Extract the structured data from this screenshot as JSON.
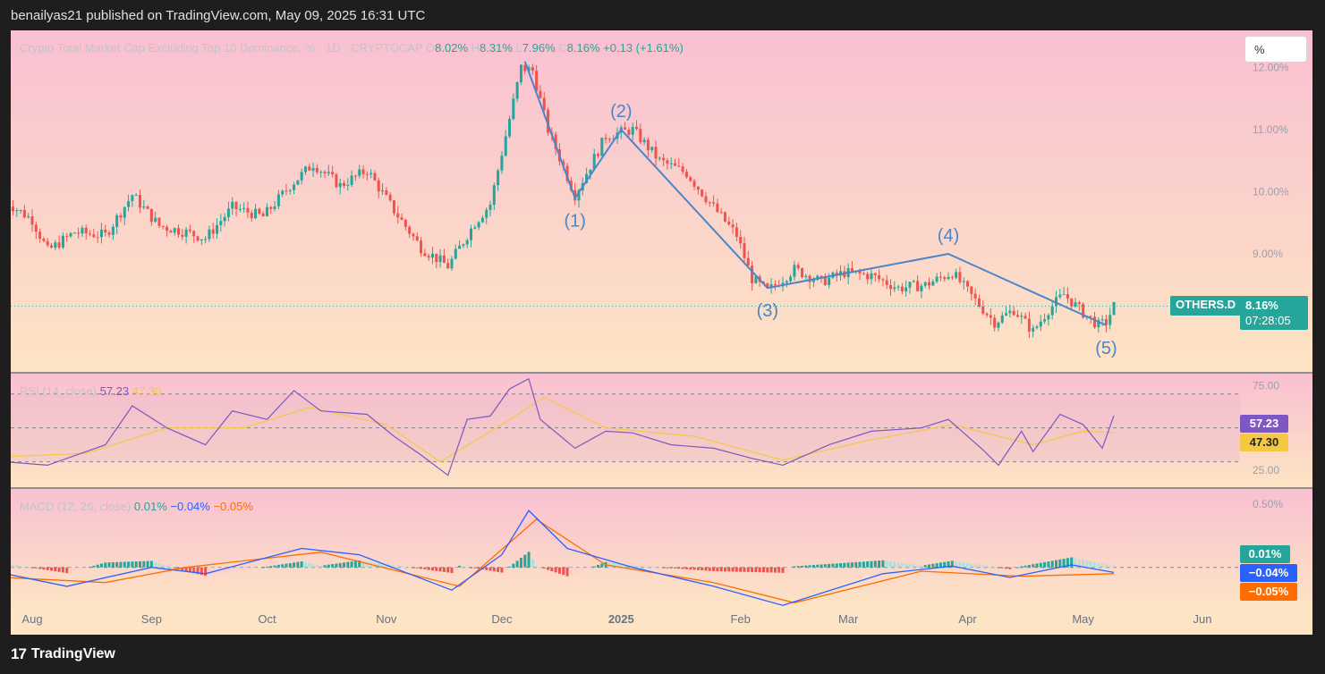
{
  "header": {
    "publisher_text": "benailyas21 published on TradingView.com, May 09, 2025 16:31 UTC"
  },
  "footer": {
    "logo_mark": "17",
    "brand": "TradingView"
  },
  "colors": {
    "up": "#26a69a",
    "down": "#ef5350",
    "wave_line": "#4a86c8",
    "rsi_line": "#7e57c2",
    "rsi_ma": "#f5c842",
    "macd_line": "#2962ff",
    "signal_line": "#ff6d00",
    "price_badge": "#26a69a",
    "bg_top": "#f9c0d2",
    "bg_bottom": "#fde4c4"
  },
  "price_scale_button": "%",
  "chart_data": [
    {
      "type": "candlestick",
      "title": "Crypto Total Market Cap Excluding Top 10 Dominance, % · 1D · CRYPTOCAP",
      "ohlc": {
        "o_label": "O",
        "o": "8.02%",
        "h_label": "H",
        "h": "8.31%",
        "l_label": "L",
        "l": "7.96%",
        "c_label": "C",
        "c": "8.16%",
        "change": "+0.13 (+1.61%)"
      },
      "x_ticks": [
        "Aug",
        "Sep",
        "Oct",
        "Nov",
        "Dec",
        "2025",
        "Feb",
        "Mar",
        "Apr",
        "May",
        "Jun"
      ],
      "y_ticks": [
        "12.00%",
        "11.00%",
        "10.00%",
        "9.00%"
      ],
      "ylim": [
        7.1,
        12.6
      ],
      "last_value_label": "OTHERS.D",
      "last_value": "8.16%",
      "countdown": "07:28:05",
      "close_series": [
        {
          "date": "2024-07-25",
          "close": 9.85
        },
        {
          "date": "2024-08-01",
          "close": 9.55
        },
        {
          "date": "2024-08-05",
          "close": 9.05
        },
        {
          "date": "2024-08-12",
          "close": 9.35
        },
        {
          "date": "2024-08-20",
          "close": 9.3
        },
        {
          "date": "2024-08-27",
          "close": 9.95
        },
        {
          "date": "2024-09-03",
          "close": 9.45
        },
        {
          "date": "2024-09-10",
          "close": 9.35
        },
        {
          "date": "2024-09-15",
          "close": 9.25
        },
        {
          "date": "2024-09-22",
          "close": 9.75
        },
        {
          "date": "2024-09-30",
          "close": 9.6
        },
        {
          "date": "2024-10-07",
          "close": 10.1
        },
        {
          "date": "2024-10-13",
          "close": 10.45
        },
        {
          "date": "2024-10-20",
          "close": 10.1
        },
        {
          "date": "2024-10-27",
          "close": 10.35
        },
        {
          "date": "2024-11-03",
          "close": 9.7
        },
        {
          "date": "2024-11-10",
          "close": 9.1
        },
        {
          "date": "2024-11-17",
          "close": 8.8
        },
        {
          "date": "2024-11-24",
          "close": 9.5
        },
        {
          "date": "2024-11-28",
          "close": 9.8
        },
        {
          "date": "2024-12-02",
          "close": 10.9
        },
        {
          "date": "2024-12-06",
          "close": 12.0
        },
        {
          "date": "2024-12-09",
          "close": 11.95
        },
        {
          "date": "2024-12-13",
          "close": 11.0
        },
        {
          "date": "2024-12-20",
          "close": 9.95
        },
        {
          "date": "2024-12-28",
          "close": 10.9
        },
        {
          "date": "2025-01-04",
          "close": 11.0
        },
        {
          "date": "2025-01-11",
          "close": 10.5
        },
        {
          "date": "2025-01-18",
          "close": 10.3
        },
        {
          "date": "2025-01-25",
          "close": 9.75
        },
        {
          "date": "2025-01-31",
          "close": 9.3
        },
        {
          "date": "2025-02-04",
          "close": 8.6
        },
        {
          "date": "2025-02-08",
          "close": 8.4
        },
        {
          "date": "2025-02-15",
          "close": 8.75
        },
        {
          "date": "2025-02-22",
          "close": 8.55
        },
        {
          "date": "2025-02-28",
          "close": 8.7
        },
        {
          "date": "2025-03-07",
          "close": 8.65
        },
        {
          "date": "2025-03-14",
          "close": 8.45
        },
        {
          "date": "2025-03-21",
          "close": 8.5
        },
        {
          "date": "2025-03-28",
          "close": 8.7
        },
        {
          "date": "2025-04-03",
          "close": 8.25
        },
        {
          "date": "2025-04-08",
          "close": 7.9
        },
        {
          "date": "2025-04-13",
          "close": 8.1
        },
        {
          "date": "2025-04-18",
          "close": 7.75
        },
        {
          "date": "2025-04-22",
          "close": 8.1
        },
        {
          "date": "2025-04-26",
          "close": 8.35
        },
        {
          "date": "2025-05-01",
          "close": 8.05
        },
        {
          "date": "2025-05-05",
          "close": 7.85
        },
        {
          "date": "2025-05-07",
          "close": 7.9
        },
        {
          "date": "2025-05-09",
          "close": 8.16
        }
      ],
      "elliott_wave": [
        {
          "label": "",
          "date": "2024-12-07",
          "value": 12.1,
          "label_pos": "none"
        },
        {
          "label": "(1)",
          "date": "2024-12-20",
          "value": 9.9,
          "label_pos": "below"
        },
        {
          "label": "(2)",
          "date": "2025-01-01",
          "value": 11.0,
          "label_pos": "above"
        },
        {
          "label": "(3)",
          "date": "2025-02-08",
          "value": 8.45,
          "label_pos": "below"
        },
        {
          "label": "(4)",
          "date": "2025-03-27",
          "value": 9.0,
          "label_pos": "above"
        },
        {
          "label": "(5)",
          "date": "2025-05-07",
          "value": 7.85,
          "label_pos": "below"
        }
      ]
    },
    {
      "type": "line",
      "title": "RSI (14, close)",
      "legend_value": "57.23",
      "ma_value": "47.30",
      "y_ticks": [
        "75.00",
        "25.00"
      ],
      "levels": [
        70,
        50,
        30
      ],
      "ylim": [
        15,
        82
      ],
      "rsi_badge": "57.23",
      "ma_badge": "47.30",
      "rsi_series": [
        {
          "date": "2024-07-25",
          "value": 30
        },
        {
          "date": "2024-08-05",
          "value": 28
        },
        {
          "date": "2024-08-20",
          "value": 40
        },
        {
          "date": "2024-08-27",
          "value": 63
        },
        {
          "date": "2024-09-05",
          "value": 50
        },
        {
          "date": "2024-09-15",
          "value": 40
        },
        {
          "date": "2024-09-22",
          "value": 60
        },
        {
          "date": "2024-10-01",
          "value": 55
        },
        {
          "date": "2024-10-08",
          "value": 72
        },
        {
          "date": "2024-10-15",
          "value": 60
        },
        {
          "date": "2024-10-27",
          "value": 58
        },
        {
          "date": "2024-11-03",
          "value": 45
        },
        {
          "date": "2024-11-10",
          "value": 34
        },
        {
          "date": "2024-11-17",
          "value": 22
        },
        {
          "date": "2024-11-22",
          "value": 55
        },
        {
          "date": "2024-11-28",
          "value": 57
        },
        {
          "date": "2024-12-03",
          "value": 73
        },
        {
          "date": "2024-12-08",
          "value": 79
        },
        {
          "date": "2024-12-11",
          "value": 55
        },
        {
          "date": "2024-12-20",
          "value": 38
        },
        {
          "date": "2024-12-28",
          "value": 48
        },
        {
          "date": "2025-01-04",
          "value": 47
        },
        {
          "date": "2025-01-14",
          "value": 40
        },
        {
          "date": "2025-01-25",
          "value": 38
        },
        {
          "date": "2025-02-04",
          "value": 32
        },
        {
          "date": "2025-02-12",
          "value": 28
        },
        {
          "date": "2025-02-24",
          "value": 40
        },
        {
          "date": "2025-03-07",
          "value": 48
        },
        {
          "date": "2025-03-20",
          "value": 50
        },
        {
          "date": "2025-03-27",
          "value": 55
        },
        {
          "date": "2025-04-05",
          "value": 37
        },
        {
          "date": "2025-04-09",
          "value": 28
        },
        {
          "date": "2025-04-15",
          "value": 48
        },
        {
          "date": "2025-04-18",
          "value": 36
        },
        {
          "date": "2025-04-25",
          "value": 58
        },
        {
          "date": "2025-05-01",
          "value": 52
        },
        {
          "date": "2025-05-06",
          "value": 38
        },
        {
          "date": "2025-05-09",
          "value": 57.23
        }
      ],
      "rsi_ma_series": [
        {
          "date": "2024-07-25",
          "value": 33
        },
        {
          "date": "2024-08-15",
          "value": 35
        },
        {
          "date": "2024-09-05",
          "value": 50
        },
        {
          "date": "2024-09-25",
          "value": 50
        },
        {
          "date": "2024-10-12",
          "value": 62
        },
        {
          "date": "2024-11-01",
          "value": 52
        },
        {
          "date": "2024-11-15",
          "value": 30
        },
        {
          "date": "2024-12-01",
          "value": 52
        },
        {
          "date": "2024-12-12",
          "value": 68
        },
        {
          "date": "2024-12-28",
          "value": 50
        },
        {
          "date": "2025-01-20",
          "value": 45
        },
        {
          "date": "2025-02-12",
          "value": 31
        },
        {
          "date": "2025-03-05",
          "value": 42
        },
        {
          "date": "2025-03-28",
          "value": 52
        },
        {
          "date": "2025-04-18",
          "value": 40
        },
        {
          "date": "2025-05-01",
          "value": 48
        },
        {
          "date": "2025-05-09",
          "value": 47.3
        }
      ]
    },
    {
      "type": "bar",
      "title": "MACD (12, 26, close)",
      "histogram_value": "0.01%",
      "macd_value": "−0.04%",
      "signal_value": "−0.05%",
      "y_ticks": [
        "0.50%"
      ],
      "ylim": [
        -0.32,
        0.62
      ],
      "histogram_badge": "0.01%",
      "macd_badge": "−0.04%",
      "signal_badge": "−0.05%",
      "macd_series": [
        {
          "date": "2024-07-25",
          "value": -0.05
        },
        {
          "date": "2024-08-10",
          "value": -0.15
        },
        {
          "date": "2024-09-01",
          "value": 0.0
        },
        {
          "date": "2024-09-15",
          "value": -0.05
        },
        {
          "date": "2024-10-10",
          "value": 0.15
        },
        {
          "date": "2024-10-25",
          "value": 0.1
        },
        {
          "date": "2024-11-18",
          "value": -0.18
        },
        {
          "date": "2024-12-01",
          "value": 0.1
        },
        {
          "date": "2024-12-08",
          "value": 0.45
        },
        {
          "date": "2024-12-18",
          "value": 0.15
        },
        {
          "date": "2025-01-04",
          "value": 0.0
        },
        {
          "date": "2025-01-25",
          "value": -0.15
        },
        {
          "date": "2025-02-12",
          "value": -0.3
        },
        {
          "date": "2025-03-10",
          "value": -0.05
        },
        {
          "date": "2025-03-28",
          "value": 0.01
        },
        {
          "date": "2025-04-12",
          "value": -0.08
        },
        {
          "date": "2025-04-28",
          "value": 0.02
        },
        {
          "date": "2025-05-09",
          "value": -0.04
        }
      ],
      "signal_series": [
        {
          "date": "2024-07-25",
          "value": -0.08
        },
        {
          "date": "2024-08-20",
          "value": -0.12
        },
        {
          "date": "2024-09-10",
          "value": 0.0
        },
        {
          "date": "2024-10-15",
          "value": 0.12
        },
        {
          "date": "2024-11-20",
          "value": -0.15
        },
        {
          "date": "2024-12-10",
          "value": 0.38
        },
        {
          "date": "2024-12-28",
          "value": 0.02
        },
        {
          "date": "2025-01-25",
          "value": -0.12
        },
        {
          "date": "2025-02-15",
          "value": -0.28
        },
        {
          "date": "2025-03-20",
          "value": -0.03
        },
        {
          "date": "2025-04-15",
          "value": -0.07
        },
        {
          "date": "2025-05-09",
          "value": -0.05
        }
      ]
    }
  ]
}
